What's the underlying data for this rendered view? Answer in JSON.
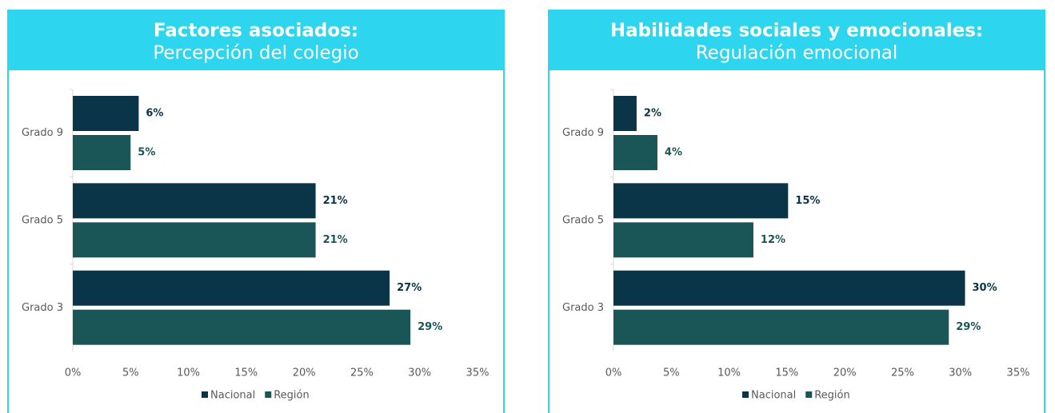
{
  "chart_data": [
    {
      "type": "bar",
      "orientation": "horizontal",
      "title": "Factores asociados:",
      "subtitle": "Percepción del colegio",
      "categories": [
        "Grado 9",
        "Grado 5",
        "Grado 3"
      ],
      "series": [
        {
          "name": "Nacional",
          "color": "#0a3447",
          "values": [
            5.7,
            21.0,
            27.4
          ],
          "value_labels": [
            "6%",
            "21%",
            "27%"
          ]
        },
        {
          "name": "Región",
          "color": "#1a5558",
          "values": [
            5.0,
            21.0,
            29.2
          ],
          "value_labels": [
            "5%",
            "21%",
            "29%"
          ]
        }
      ],
      "xlim": [
        0,
        35
      ],
      "xticks": [
        {
          "value": 0,
          "label": "0%"
        },
        {
          "value": 5,
          "label": "5%"
        },
        {
          "value": 10,
          "label": "10%"
        },
        {
          "value": 15,
          "label": "15%"
        },
        {
          "value": 20,
          "label": "20%"
        },
        {
          "value": 25,
          "label": "25%"
        },
        {
          "value": 30,
          "label": "30%"
        },
        {
          "value": 35,
          "label": "35%"
        }
      ],
      "legend": "bottom"
    },
    {
      "type": "bar",
      "orientation": "horizontal",
      "title": "Habilidades sociales y emocionales:",
      "subtitle": "Regulación emocional",
      "categories": [
        "Grado 9",
        "Grado 5",
        "Grado 3"
      ],
      "series": [
        {
          "name": "Nacional",
          "color": "#0a3447",
          "values": [
            2.0,
            15.1,
            30.4
          ],
          "value_labels": [
            "2%",
            "15%",
            "30%"
          ]
        },
        {
          "name": "Región",
          "color": "#1a5558",
          "values": [
            3.8,
            12.1,
            29.0
          ],
          "value_labels": [
            "4%",
            "12%",
            "29%"
          ]
        }
      ],
      "xlim": [
        0,
        35
      ],
      "xticks": [
        {
          "value": 0,
          "label": "0%"
        },
        {
          "value": 5,
          "label": "5%"
        },
        {
          "value": 10,
          "label": "10%"
        },
        {
          "value": 15,
          "label": "15%"
        },
        {
          "value": 20,
          "label": "20%"
        },
        {
          "value": 25,
          "label": "25%"
        },
        {
          "value": 30,
          "label": "30%"
        },
        {
          "value": 35,
          "label": "35%"
        }
      ],
      "legend": "bottom"
    }
  ]
}
